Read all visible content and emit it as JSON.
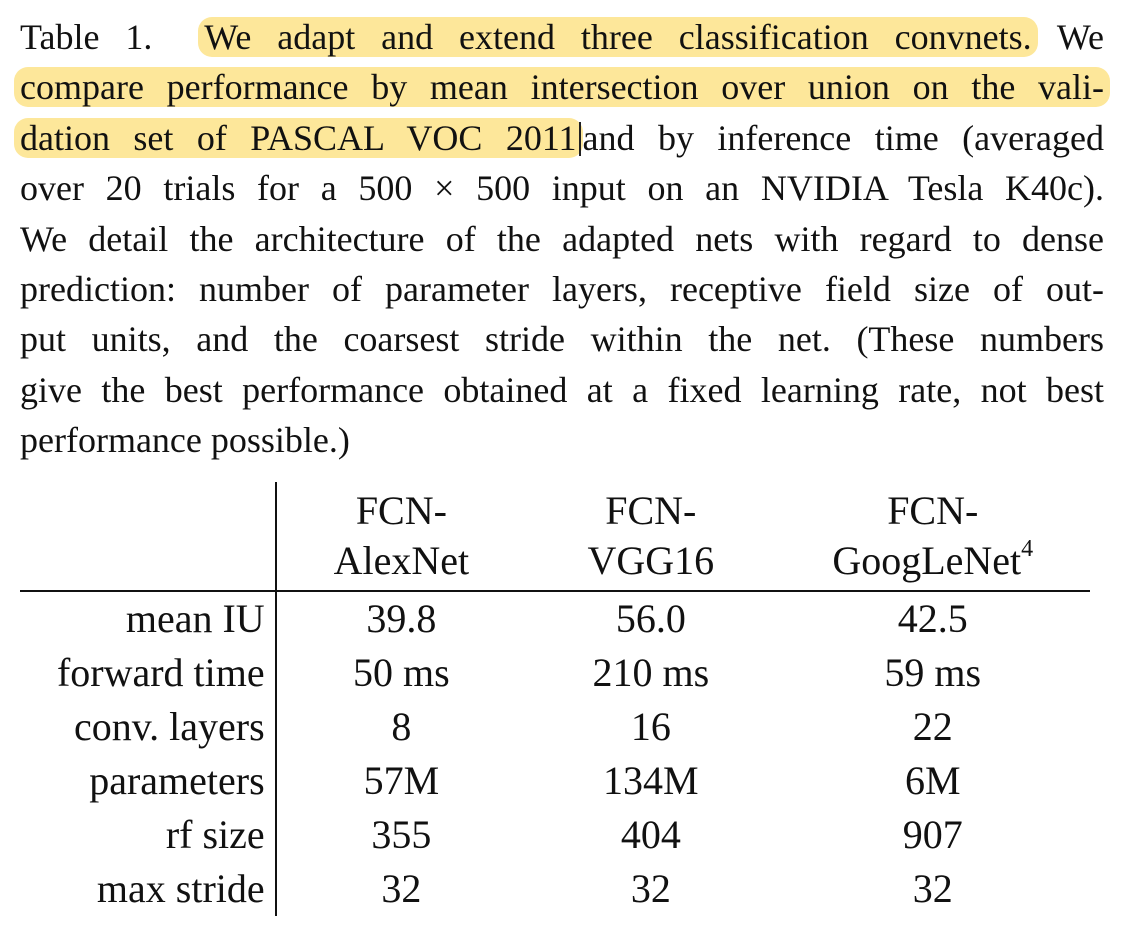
{
  "caption": {
    "line1": {
      "prefix": "Table 1.",
      "highlight": "We adapt and extend three classification convnets.",
      "suffix": "We"
    },
    "line2": {
      "highlight": "compare performance by mean intersection over union on the vali-"
    },
    "line3": {
      "highlight": "dation set of PASCAL VOC 2011",
      "suffix": "and by inference time (averaged"
    },
    "line4": "over 20 trials for a 500 × 500 input on an NVIDIA Tesla K40c).",
    "line5": "We detail the architecture of the adapted nets with regard to dense",
    "line6": "prediction: number of parameter layers, receptive field size of out-",
    "line7": "put units, and the coarsest stride within the net. (These numbers",
    "line8": "give the best performance obtained at a fixed learning rate, not best",
    "line9": "performance possible.)"
  },
  "table": {
    "columns": [
      {
        "line1": "FCN-",
        "line2": "AlexNet",
        "sup": ""
      },
      {
        "line1": "FCN-",
        "line2": "VGG16",
        "sup": ""
      },
      {
        "line1": "FCN-",
        "line2": "GoogLeNet",
        "sup": "4"
      }
    ],
    "rows": [
      {
        "label": "mean IU",
        "values": [
          "39.8",
          "56.0",
          "42.5"
        ]
      },
      {
        "label": "forward time",
        "values": [
          "50 ms",
          "210 ms",
          "59 ms"
        ]
      },
      {
        "label": "conv. layers",
        "values": [
          "8",
          "16",
          "22"
        ]
      },
      {
        "label": "parameters",
        "values": [
          "57M",
          "134M",
          "6M"
        ]
      },
      {
        "label": "rf size",
        "values": [
          "355",
          "404",
          "907"
        ]
      },
      {
        "label": "max stride",
        "values": [
          "32",
          "32",
          "32"
        ]
      }
    ],
    "highlight_color": "#fde79a"
  }
}
